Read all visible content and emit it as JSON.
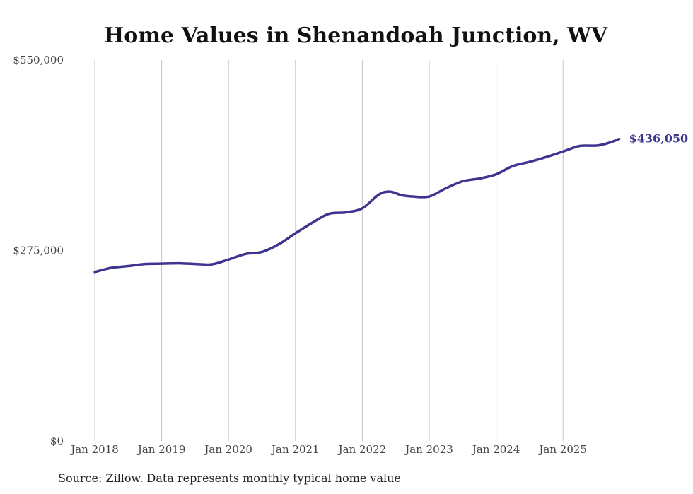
{
  "chart_data": {
    "type": "line",
    "title": "Home Values in Shenandoah Junction, WV",
    "xlabel": "",
    "ylabel": "",
    "ylim": [
      0,
      550000
    ],
    "xlim": [
      2018.0,
      2025.84
    ],
    "yticks": [
      0,
      275000,
      550000
    ],
    "ytick_labels": [
      "$0",
      "$275,000",
      "$550,000"
    ],
    "xticks": [
      2018,
      2019,
      2020,
      2021,
      2022,
      2023,
      2024,
      2025
    ],
    "xtick_labels": [
      "Jan 2018",
      "Jan 2019",
      "Jan 2020",
      "Jan 2021",
      "Jan 2022",
      "Jan 2023",
      "Jan 2024",
      "Jan 2025"
    ],
    "grid": "vertical",
    "series": [
      {
        "name": "Typical home value",
        "color": "#3d3590",
        "x": [
          2018.0,
          2018.25,
          2018.5,
          2018.75,
          2019.0,
          2019.25,
          2019.5,
          2019.75,
          2020.0,
          2020.25,
          2020.5,
          2020.75,
          2021.0,
          2021.25,
          2021.5,
          2021.75,
          2022.0,
          2022.25,
          2022.42,
          2022.58,
          2022.75,
          2023.0,
          2023.25,
          2023.5,
          2023.75,
          2024.0,
          2024.25,
          2024.5,
          2024.75,
          2025.0,
          2025.25,
          2025.5,
          2025.67,
          2025.84
        ],
        "values": [
          244000,
          250000,
          252500,
          255500,
          256000,
          256500,
          255500,
          255000,
          262000,
          270000,
          273000,
          284000,
          300000,
          315000,
          328000,
          330000,
          336000,
          356000,
          360000,
          355000,
          353000,
          353000,
          365000,
          375000,
          379000,
          385000,
          397000,
          403000,
          410000,
          418000,
          426000,
          426500,
          430000,
          436050
        ]
      }
    ],
    "end_label": "$436,050"
  },
  "footer": {
    "source": "Source: Zillow. Data represents monthly typical home value"
  }
}
